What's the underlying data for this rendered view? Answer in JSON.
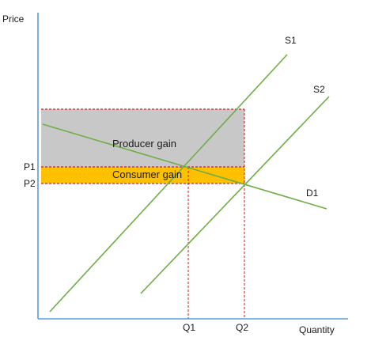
{
  "axes": {
    "y_label": "Price",
    "x_label": "Quantity"
  },
  "price_levels": {
    "p1": "P1",
    "p2": "P2"
  },
  "quantity_levels": {
    "q1": "Q1",
    "q2": "Q2"
  },
  "curves": {
    "supply_original": "S1",
    "supply_shifted": "S2",
    "demand": "D1"
  },
  "regions": {
    "producer": "Producer gain",
    "consumer": "Consumer gain"
  },
  "colors": {
    "axis": "#5b9bd5",
    "curve": "#70ad47",
    "guide": "#c00000",
    "producer_fill": "#c8c8c8",
    "consumer_fill": "#ffc000"
  }
}
